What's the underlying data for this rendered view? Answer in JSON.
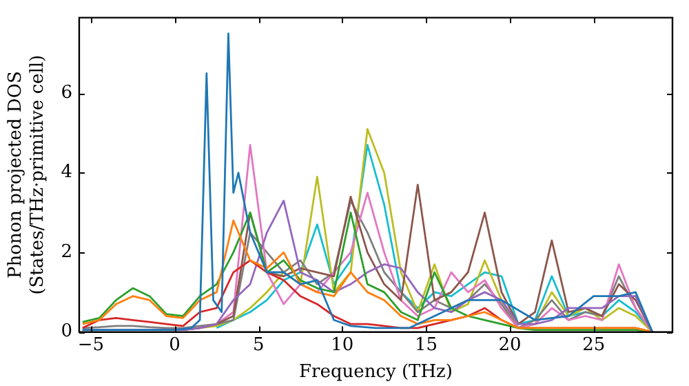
{
  "chart_data": {
    "type": "line",
    "xlabel": "Frequency (THz)",
    "ylabel": "Phonon projected DOS\n(States/THz·primitive cell)",
    "xlim": [
      -5.7,
      29.7
    ],
    "ylim": [
      0,
      7.9
    ],
    "xticks": [
      -5,
      0,
      5,
      10,
      15,
      20,
      25
    ],
    "yticks": [
      0,
      2,
      4,
      6
    ],
    "grid": false,
    "legend": false,
    "marker": "none",
    "line_style": "solid",
    "x": [
      -5.5,
      -4.5,
      -3.5,
      -2.5,
      -1.5,
      -0.5,
      0.5,
      1.5,
      2.5,
      3.5,
      4.5,
      5.5,
      6.5,
      7.5,
      8.5,
      9.5,
      10.5,
      11.5,
      12.5,
      13.5,
      14.5,
      15.5,
      16.5,
      17.5,
      18.5,
      19.5,
      20.5,
      21.5,
      22.5,
      23.5,
      24.5,
      25.5,
      26.5,
      27.5,
      28.5
    ],
    "series": [
      {
        "color": "#1f77b4",
        "x": [
          -5.5,
          -3,
          0,
          1,
          1.5,
          1.9,
          2.3,
          2.8,
          3.2,
          3.5,
          3.8,
          4.5,
          5.5,
          6.5,
          7.5,
          8.5,
          9.5,
          10.5,
          12,
          14,
          15.5,
          17.5,
          19.5,
          21.5,
          23.5,
          25,
          26.5,
          27.5,
          28.5
        ],
        "values": [
          0.05,
          0.05,
          0.05,
          0.1,
          0.3,
          6.5,
          0.8,
          0.5,
          7.5,
          3.5,
          4.0,
          2.5,
          1.5,
          1.5,
          1.2,
          1.3,
          0.3,
          0.15,
          0.1,
          0.1,
          0.4,
          0.8,
          0.8,
          0.3,
          0.4,
          0.9,
          0.9,
          1.0,
          0
        ]
      },
      {
        "color": "#ff7f0e",
        "values": [
          0.2,
          0.3,
          0.7,
          0.9,
          0.8,
          0.4,
          0.35,
          0.8,
          1.0,
          2.8,
          1.8,
          1.6,
          2.0,
          1.2,
          1.0,
          0.9,
          1.5,
          1.0,
          0.8,
          0.4,
          0.2,
          0.3,
          0.3,
          0.4,
          0.5,
          0.3,
          0.1,
          0.1,
          0.1,
          0.1,
          0.1,
          0.1,
          0.1,
          0.1,
          0
        ]
      },
      {
        "color": "#2ca02c",
        "values": [
          0.25,
          0.35,
          0.8,
          1.1,
          0.9,
          0.45,
          0.4,
          0.9,
          1.2,
          2.0,
          3.0,
          1.5,
          1.8,
          1.3,
          1.1,
          1.0,
          3.0,
          1.2,
          1.0,
          0.5,
          0.3,
          1.5,
          0.6,
          0.4,
          0.3,
          0.2,
          0.1,
          0.05,
          0.05,
          0.05,
          0.05,
          0.05,
          0.05,
          0.05,
          0
        ]
      },
      {
        "color": "#d62728",
        "values": [
          0.1,
          0.3,
          0.35,
          0.3,
          0.25,
          0.2,
          0.15,
          0.5,
          0.6,
          1.5,
          1.8,
          1.5,
          1.3,
          0.9,
          0.7,
          0.4,
          0.2,
          0.2,
          0.15,
          0.1,
          0.1,
          0.2,
          0.3,
          0.4,
          0.6,
          0.3,
          0.1,
          0.1,
          0.1,
          0.1,
          0.1,
          0.1,
          0.1,
          0.1,
          0
        ]
      },
      {
        "color": "#9467bd",
        "values": [
          0.05,
          0.05,
          0.05,
          0.05,
          0.05,
          0.05,
          0.05,
          0.1,
          0.2,
          0.8,
          1.2,
          2.5,
          3.3,
          1.5,
          1.3,
          1.0,
          1.2,
          1.5,
          1.7,
          1.6,
          1.0,
          0.6,
          0.5,
          0.8,
          1.0,
          0.8,
          0.2,
          0.2,
          0.3,
          0.6,
          0.6,
          0.6,
          0.9,
          0.9,
          0
        ]
      },
      {
        "color": "#8c564b",
        "values": [
          0.05,
          0.05,
          0.05,
          0.05,
          0.05,
          0.05,
          0.05,
          0.1,
          0.2,
          0.4,
          3.0,
          1.5,
          1.4,
          1.6,
          1.5,
          1.4,
          3.4,
          2.0,
          1.2,
          0.8,
          3.7,
          0.8,
          1.0,
          1.5,
          3.0,
          1.0,
          0.2,
          0.5,
          2.3,
          0.5,
          0.6,
          0.4,
          1.2,
          0.8,
          0
        ]
      },
      {
        "color": "#e377c2",
        "values": [
          null,
          null,
          null,
          null,
          null,
          null,
          0.05,
          0.1,
          0.2,
          0.5,
          4.7,
          1.5,
          0.7,
          1.2,
          1.0,
          1.5,
          2.0,
          3.5,
          2.0,
          0.8,
          0.4,
          0.6,
          1.5,
          1.0,
          1.3,
          0.6,
          0.1,
          0.2,
          0.6,
          0.3,
          0.4,
          0.3,
          1.7,
          0.6,
          0
        ]
      },
      {
        "color": "#7f7f7f",
        "values": [
          0.1,
          0.12,
          0.15,
          0.15,
          0.12,
          0.1,
          0.1,
          0.15,
          0.2,
          0.3,
          2.5,
          2.0,
          1.5,
          1.8,
          1.2,
          1.5,
          3.3,
          2.5,
          1.5,
          1.0,
          0.5,
          0.8,
          0.6,
          0.8,
          1.2,
          0.7,
          0.1,
          0.3,
          0.8,
          0.3,
          0.5,
          0.4,
          1.4,
          0.6,
          0
        ]
      },
      {
        "color": "#bcbd22",
        "values": [
          null,
          null,
          null,
          null,
          null,
          null,
          0.05,
          0.1,
          0.15,
          0.3,
          0.6,
          1.0,
          1.5,
          1.2,
          3.9,
          1.0,
          1.5,
          5.1,
          4.0,
          1.5,
          0.5,
          1.7,
          0.5,
          0.7,
          1.8,
          0.8,
          0.1,
          0.2,
          1.0,
          0.4,
          0.6,
          0.3,
          0.6,
          0.4,
          0
        ]
      },
      {
        "color": "#17becf",
        "values": [
          null,
          null,
          null,
          null,
          null,
          null,
          null,
          null,
          0.1,
          0.3,
          0.5,
          0.8,
          1.3,
          1.5,
          2.7,
          1.2,
          1.8,
          4.7,
          3.2,
          1.0,
          0.6,
          1.0,
          0.9,
          1.2,
          1.5,
          1.4,
          0.2,
          0.3,
          1.4,
          0.4,
          0.5,
          0.4,
          0.8,
          0.5,
          0
        ]
      }
    ]
  }
}
